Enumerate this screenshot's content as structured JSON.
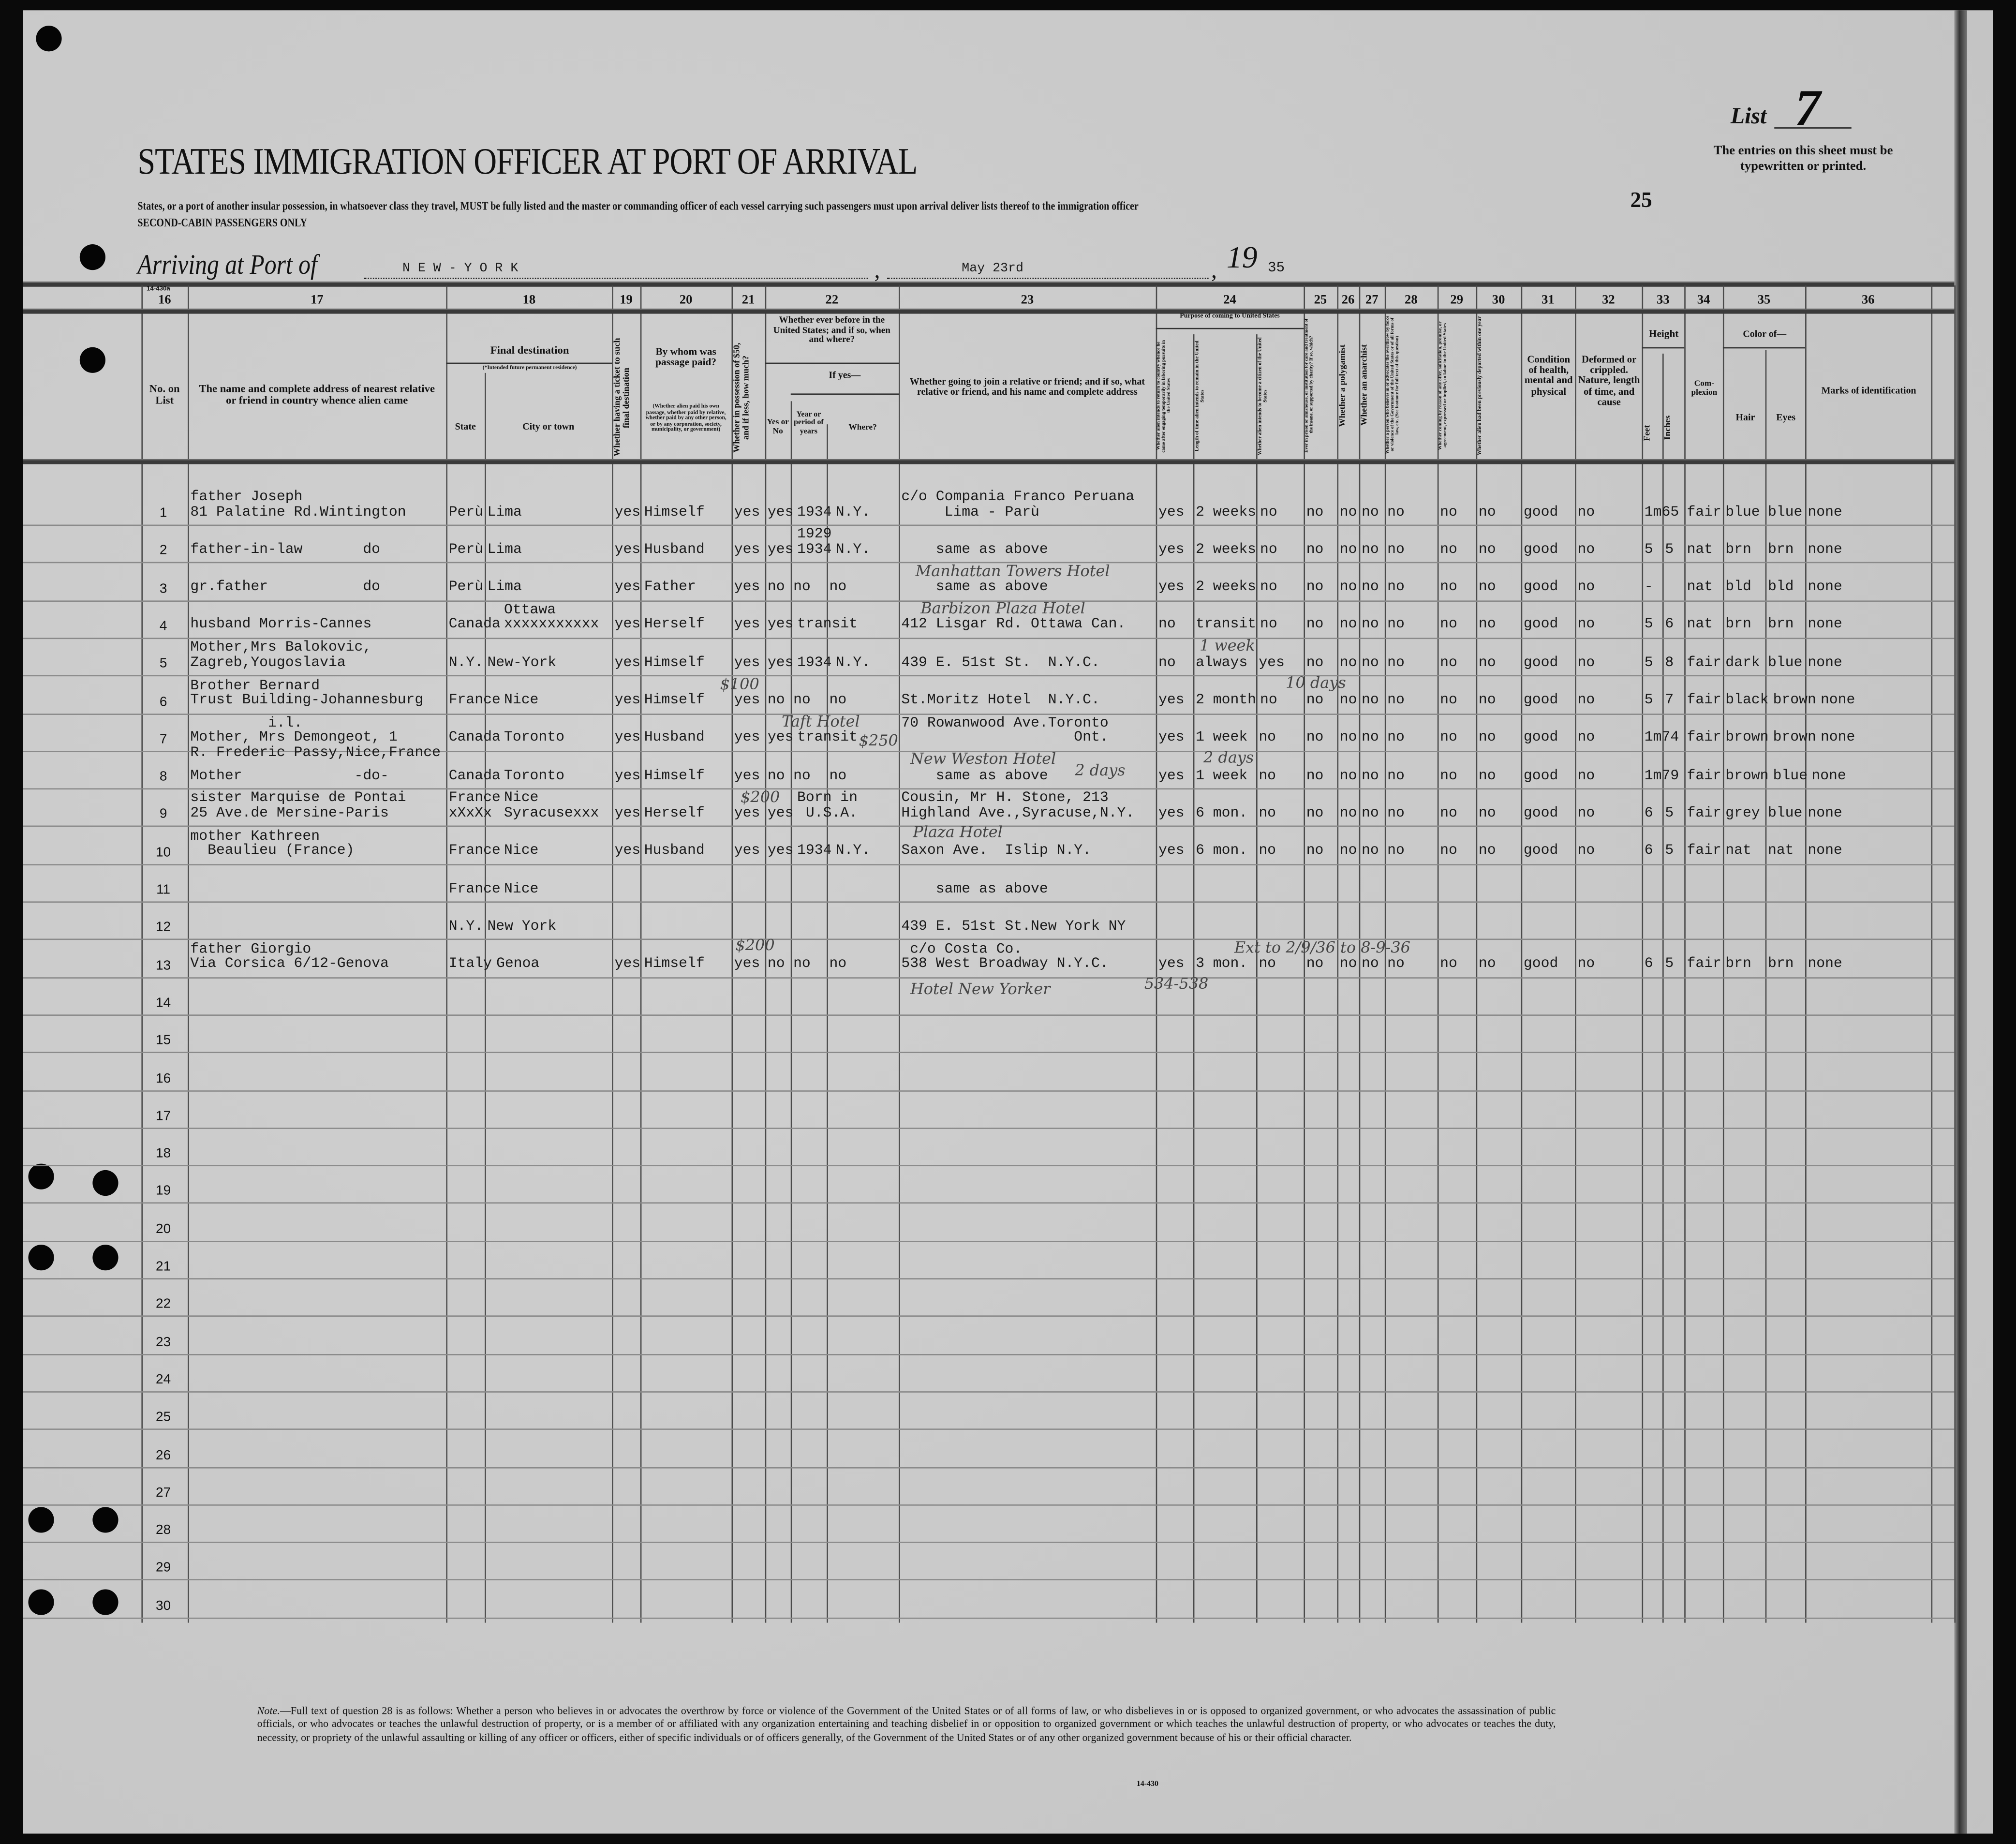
{
  "header": {
    "list_label": "List",
    "list_number": "7",
    "entries_notice": "The entries on this sheet must be typewritten or printed.",
    "title": "STATES IMMIGRATION OFFICER AT PORT OF ARRIVAL",
    "instructions": "States, or a port of another insular possession, in whatsoever class they travel, MUST be fully listed and the master or commanding officer of each vessel carrying such passengers must upon arrival deliver lists thereof to the immigration officer",
    "class_line": "SECOND-CABIN PASSENGERS ONLY",
    "sheet_count": "25",
    "arriving_label": "Arriving at Port of",
    "port": "N E W - Y O R K",
    "date": "May 23rd",
    "year_prefix": "19",
    "year_suffix": "35",
    "form_number": "14-430a"
  },
  "columns": {
    "c16": {
      "num": "16",
      "label": "No. on List"
    },
    "c17": {
      "num": "17",
      "label": "The name and complete address of nearest relative or friend in country whence alien came"
    },
    "c18": {
      "num": "18",
      "label": "Final destination",
      "sublabel": "(*Intended future permanent residence)",
      "state": "State",
      "city": "City or town"
    },
    "c19": {
      "num": "19",
      "label": "Whether having a ticket to such final destination"
    },
    "c20": {
      "num": "20",
      "label": "By whom was passage paid?",
      "sublabel": "(Whether alien paid his own passage, whether paid by relative, whether paid by any other person, or by any corporation, society, municipality, or government)"
    },
    "c21": {
      "num": "21",
      "label": "Whether in possession of $50, and if less, how much?"
    },
    "c22": {
      "num": "22",
      "label": "Whether ever before in the United States; and if so, when and where?",
      "yesno": "Yes or No",
      "ifyes": "If yes—",
      "year": "Year or period of years",
      "where": "Where?"
    },
    "c23": {
      "num": "23",
      "label": "Whether going to join a relative or friend; and if so, what relative or friend, and his name and complete address"
    },
    "c24": {
      "num": "24",
      "label": "Purpose of coming to United States",
      "sub1": "Whether alien intends to return to country whence he came after engaging temporarily in laboring pursuits in the United States",
      "sub2": "Length of time alien intends to remain in the United States",
      "sub3": "Whether alien intends to become a citizen of the United States"
    },
    "c25": {
      "num": "25",
      "label": "Ever in prison or almshouse, or institution for care and treatment of the insane, or supported by charity? If so, which?"
    },
    "c26": {
      "num": "26",
      "label": "Whether a polygamist"
    },
    "c27": {
      "num": "27",
      "label": "Whether an anarchist"
    },
    "c28": {
      "num": "28",
      "label": "Whether a person who believes in or advocates the overthrow by force or violence of the Government of the United States or of all forms of law, etc. (See footnote for full text of this question)"
    },
    "c29": {
      "num": "29",
      "label": "Whether coming by reason of any offer, solicitation, promise, or agreement, expressed or implied, to labor in the United States"
    },
    "c30": {
      "num": "30",
      "label": "Whether alien had been previously deported within one year"
    },
    "c31": {
      "num": "31",
      "label": "Condition of health, mental and physical"
    },
    "c32": {
      "num": "32",
      "label": "Deformed or crippled. Nature, length of time, and cause"
    },
    "c33": {
      "num": "33",
      "label": "Height",
      "feet": "Feet",
      "inches": "Inches"
    },
    "c34": {
      "num": "34",
      "label": "Com-plexion"
    },
    "c35": {
      "num": "35",
      "label": "Color of—",
      "hair": "Hair",
      "eyes": "Eyes"
    },
    "c36": {
      "num": "36",
      "label": "Marks of identification"
    }
  },
  "row_numbers": [
    "1",
    "2",
    "3",
    "4",
    "5",
    "6",
    "7",
    "8",
    "9",
    "10",
    "11",
    "12",
    "13",
    "14",
    "15",
    "16",
    "17",
    "18",
    "19",
    "20",
    "21",
    "22",
    "23",
    "24",
    "25",
    "26",
    "27",
    "28",
    "29",
    "30"
  ],
  "rows": [
    {
      "relative": "father Joseph\n81 Palatine Rd.Wintington",
      "state": "Perù",
      "city": "Lima",
      "ticket": "yes",
      "paid": "Himself",
      "money": "yes",
      "before": "yes",
      "year": "1934",
      "where": "N.Y.",
      "joining": "c/o Compania Franco Peruana\n     Lima - Parù",
      "ret": "yes",
      "length": "2 weeks",
      "citizen": "no",
      "c25": "no",
      "c26": "no",
      "c27": "no",
      "c28": "no",
      "c29": "no",
      "c30": "no",
      "health": "good",
      "deformed": "no",
      "feet": "1m65",
      "inches": "",
      "complexion": "fair",
      "hair": "blue",
      "eyes": "blue",
      "marks": "none"
    },
    {
      "relative": "father-in-law       do",
      "state": "Perù",
      "city": "Lima",
      "ticket": "yes",
      "paid": "Husband",
      "money": "yes",
      "before": "yes",
      "year": "1929\n1934",
      "where": "N.Y.",
      "joining": "    same as above",
      "ret": "yes",
      "length": "2 weeks",
      "citizen": "no",
      "c25": "no",
      "c26": "no",
      "c27": "no",
      "c28": "no",
      "c29": "no",
      "c30": "no",
      "health": "good",
      "deformed": "no",
      "feet": "5",
      "inches": "5",
      "complexion": "nat",
      "hair": "brn",
      "eyes": "brn",
      "marks": "none"
    },
    {
      "relative": "gr.father           do",
      "state": "Perù",
      "city": "Lima",
      "ticket": "yes",
      "paid": "Father",
      "money": "yes",
      "before": "no",
      "year": "no",
      "where": "no",
      "joining": "    same as above",
      "ret": "yes",
      "length": "2 weeks",
      "citizen": "no",
      "c25": "no",
      "c26": "no",
      "c27": "no",
      "c28": "no",
      "c29": "no",
      "c30": "no",
      "health": "good",
      "deformed": "no",
      "feet": "-",
      "inches": "",
      "complexion": "nat",
      "hair": "bld",
      "eyes": "bld",
      "marks": "none"
    },
    {
      "relative": "husband Morris-Cannes",
      "state": "Canada",
      "city": "Ottawa\nxxxxxxxxxxx",
      "ticket": "yes",
      "paid": "Herself",
      "money": "yes",
      "before": "yes",
      "year": "transit",
      "where": "",
      "joining": "412 Lisgar Rd. Ottawa Can.",
      "ret": "no",
      "length": "transit",
      "citizen": "no",
      "c25": "no",
      "c26": "no",
      "c27": "no",
      "c28": "no",
      "c29": "no",
      "c30": "no",
      "health": "good",
      "deformed": "no",
      "feet": "5",
      "inches": "6",
      "complexion": "nat",
      "hair": "brn",
      "eyes": "brn",
      "marks": "none"
    },
    {
      "relative": "Mother,Mrs Balokovic,\nZagreb,Yougoslavia",
      "state": "N.Y.",
      "city": "New-York",
      "ticket": "yes",
      "paid": "Himself",
      "money": "yes",
      "before": "yes",
      "year": "1934",
      "where": "N.Y.",
      "joining": "439 E. 51st St.  N.Y.C.",
      "ret": "no",
      "length": "always",
      "citizen": "yes",
      "c25": "no",
      "c26": "no",
      "c27": "no",
      "c28": "no",
      "c29": "no",
      "c30": "no",
      "health": "good",
      "deformed": "no",
      "feet": "5",
      "inches": "8",
      "complexion": "fair",
      "hair": "dark",
      "eyes": "blue",
      "marks": "none"
    },
    {
      "relative": "Brother Bernard\nTrust Building-Johannesburg",
      "state": "France",
      "city": "Nice",
      "ticket": "yes",
      "paid": "Himself",
      "money": "yes",
      "before": "no",
      "year": "no",
      "where": "no",
      "joining": "St.Moritz Hotel  N.Y.C.",
      "ret": "yes",
      "length": "2 month",
      "citizen": "no",
      "c25": "no",
      "c26": "no",
      "c27": "no",
      "c28": "no",
      "c29": "no",
      "c30": "no",
      "health": "good",
      "deformed": "no",
      "feet": "5",
      "inches": "7",
      "complexion": "fair",
      "hair": "black",
      "eyes": "brown",
      "marks": "none"
    },
    {
      "relative": "         i.l.\nMother, Mrs Demongeot, 1\nR. Frederic Passy,Nice,France",
      "state": "Canada",
      "city": "Toronto",
      "ticket": "yes",
      "paid": "Husband",
      "money": "yes",
      "before": "yes",
      "year": "transit",
      "where": "",
      "joining": "70 Rowanwood Ave.Toronto\n                    Ont.",
      "ret": "yes",
      "length": "1 week",
      "citizen": "no",
      "c25": "no",
      "c26": "no",
      "c27": "no",
      "c28": "no",
      "c29": "no",
      "c30": "no",
      "health": "good",
      "deformed": "no",
      "feet": "1m74",
      "inches": "",
      "complexion": "fair",
      "hair": "brown",
      "eyes": "brown",
      "marks": "none"
    },
    {
      "relative": "Mother             -do-",
      "state": "Canada",
      "city": "Toronto",
      "ticket": "yes",
      "paid": "Himself",
      "money": "yes",
      "before": "no",
      "year": "no",
      "where": "no",
      "joining": "    same as above",
      "ret": "yes",
      "length": "1 week",
      "citizen": "no",
      "c25": "no",
      "c26": "no",
      "c27": "no",
      "c28": "no",
      "c29": "no",
      "c30": "no",
      "health": "good",
      "deformed": "no",
      "feet": "1m79",
      "inches": "",
      "complexion": "fair",
      "hair": "brown",
      "eyes": "blue",
      "marks": "none"
    },
    {
      "relative": "sister Marquise de Pontai\n25 Ave.de Mersine-Paris",
      "state": "France\nxXxXx",
      "city": "Nice\nSyracusexxx",
      "ticket": "yes",
      "paid": "Herself",
      "money": "yes",
      "before": "yes",
      "year": "Born in\n U.S.A.",
      "where": "",
      "joining": "Cousin, Mr H. Stone, 213\nHighland Ave.,Syracuse,N.Y.",
      "ret": "yes",
      "length": "6 mon.",
      "citizen": "no",
      "c25": "no",
      "c26": "no",
      "c27": "no",
      "c28": "no",
      "c29": "no",
      "c30": "no",
      "health": "good",
      "deformed": "no",
      "feet": "6",
      "inches": "5",
      "complexion": "fair",
      "hair": "grey",
      "eyes": "blue",
      "marks": "none"
    },
    {
      "relative": "mother Kathreen\n  Beaulieu (France)",
      "state": "France",
      "city": "Nice",
      "ticket": "yes",
      "paid": "Husband",
      "money": "yes",
      "before": "yes",
      "year": "1934",
      "where": "N.Y.",
      "joining": "Saxon Ave.  Islip N.Y.",
      "ret": "yes",
      "length": "6 mon.",
      "citizen": "no",
      "c25": "no",
      "c26": "no",
      "c27": "no",
      "c28": "no",
      "c29": "no",
      "c30": "no",
      "health": "good",
      "deformed": "no",
      "feet": "6",
      "inches": "5",
      "complexion": "fair",
      "hair": "nat",
      "eyes": "nat",
      "marks": "none"
    },
    {
      "relative": "",
      "state": "France",
      "city": "Nice",
      "joining": "    same as above"
    },
    {
      "relative": "",
      "state": "N.Y.",
      "city": "New York",
      "joining": "439 E. 51st St.New York NY"
    },
    {
      "relative": "father Giorgio\nVia Corsica 6/12-Genova",
      "state": "Italy",
      "city": "Genoa",
      "ticket": "yes",
      "paid": "Himself",
      "money": "yes",
      "before": "no",
      "year": "no",
      "where": "no",
      "joining": " c/o Costa Co.\n538 West Broadway N.Y.C.",
      "ret": "yes",
      "length": "3 mon.",
      "citizen": "no",
      "c25": "no",
      "c26": "no",
      "c27": "no",
      "c28": "no",
      "c29": "no",
      "c30": "no",
      "health": "good",
      "deformed": "no",
      "feet": "6",
      "inches": "5",
      "complexion": "fair",
      "hair": "brn",
      "eyes": "brn",
      "marks": "none"
    }
  ],
  "handwritten": [
    "Manhattan Towers Hotel",
    "Barbizon Plaza Hotel",
    "1 week",
    "$100",
    "Taft Hotel",
    "10 days",
    "New Weston Hotel",
    "$250",
    "2 days",
    "2 days",
    "$200",
    "Plaza Hotel",
    "$200",
    "534-538",
    "Ext to 2/9/36 to 8-9-36",
    "Hotel New Yorker"
  ],
  "footnote": {
    "lead": "Note.",
    "text": "—Full text of question 28 is as follows: Whether a person who believes in or advocates the overthrow by force or violence of the Government of the United States or of all forms of law, or who disbelieves in or is opposed to organized government, or who advocates the assassination of public officials, or who advocates or teaches the unlawful destruction of property, or is a member of or affiliated with any organization entertaining and teaching disbelief in or opposition to organized government or which teaches the unlawful destruction of property, or who advocates or teaches the duty, necessity, or propriety of the unlawful assaulting or killing of any officer or officers, either of specific individuals or of officers generally, of the Government of the United States or of any other organized government because of his or their official character.",
    "form_number": "14-430"
  }
}
